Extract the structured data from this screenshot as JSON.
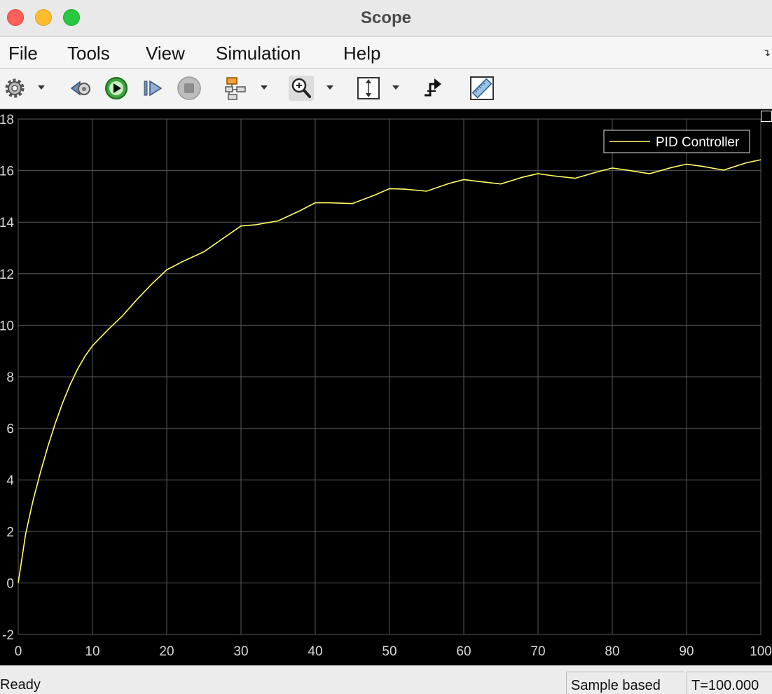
{
  "window": {
    "title": "Scope"
  },
  "menu": {
    "items": [
      "File",
      "Tools",
      "View",
      "Simulation",
      "Help"
    ]
  },
  "toolbar": {
    "buttons": [
      {
        "icon": "settings-gear-icon",
        "dropdown": true
      },
      {
        "icon": "step-back-icon",
        "dropdown": false
      },
      {
        "icon": "run-icon",
        "dropdown": false
      },
      {
        "icon": "step-forward-icon",
        "dropdown": false
      },
      {
        "icon": "stop-icon",
        "dropdown": false
      },
      {
        "icon": "signal-hierarchy-icon",
        "dropdown": true
      },
      {
        "icon": "zoom-in-icon",
        "dropdown": true
      },
      {
        "icon": "autoscale-icon",
        "dropdown": true
      },
      {
        "icon": "trigger-icon",
        "dropdown": false
      },
      {
        "icon": "measure-ruler-icon",
        "dropdown": false
      }
    ]
  },
  "status": {
    "ready": "Ready",
    "sample_mode": "Sample based",
    "time": "T=100.000"
  },
  "chart_data": {
    "type": "line",
    "background": "#000000",
    "line_color": "#ffff66",
    "grid": true,
    "legend_position": "top-right",
    "xlim": [
      0,
      100
    ],
    "ylim": [
      -2,
      18
    ],
    "x_ticks": [
      0,
      10,
      20,
      30,
      40,
      50,
      60,
      70,
      80,
      90,
      100
    ],
    "y_ticks": [
      -2,
      0,
      2,
      4,
      6,
      8,
      10,
      12,
      14,
      16,
      18
    ],
    "series": [
      {
        "name": "PID Controller",
        "x": [
          0,
          1,
          2,
          3,
          4,
          5,
          6,
          7,
          8,
          9,
          10,
          12,
          14,
          16,
          18,
          20,
          21,
          22,
          25,
          28,
          30,
          32,
          35,
          38,
          40,
          42,
          45,
          48,
          50,
          52,
          55,
          58,
          60,
          62,
          65,
          68,
          70,
          72,
          75,
          78,
          80,
          82,
          85,
          88,
          90,
          92,
          95,
          98,
          100
        ],
        "y": [
          0.0,
          1.9,
          3.2,
          4.3,
          5.3,
          6.2,
          7.0,
          7.7,
          8.3,
          8.8,
          9.2,
          9.8,
          10.35,
          11.0,
          11.6,
          12.15,
          12.3,
          12.45,
          12.85,
          13.45,
          13.85,
          13.9,
          14.05,
          14.45,
          14.75,
          14.75,
          14.72,
          15.05,
          15.3,
          15.28,
          15.2,
          15.5,
          15.65,
          15.58,
          15.48,
          15.75,
          15.88,
          15.8,
          15.7,
          15.95,
          16.1,
          16.02,
          15.88,
          16.12,
          16.25,
          16.17,
          16.02,
          16.3,
          16.42
        ]
      }
    ]
  }
}
